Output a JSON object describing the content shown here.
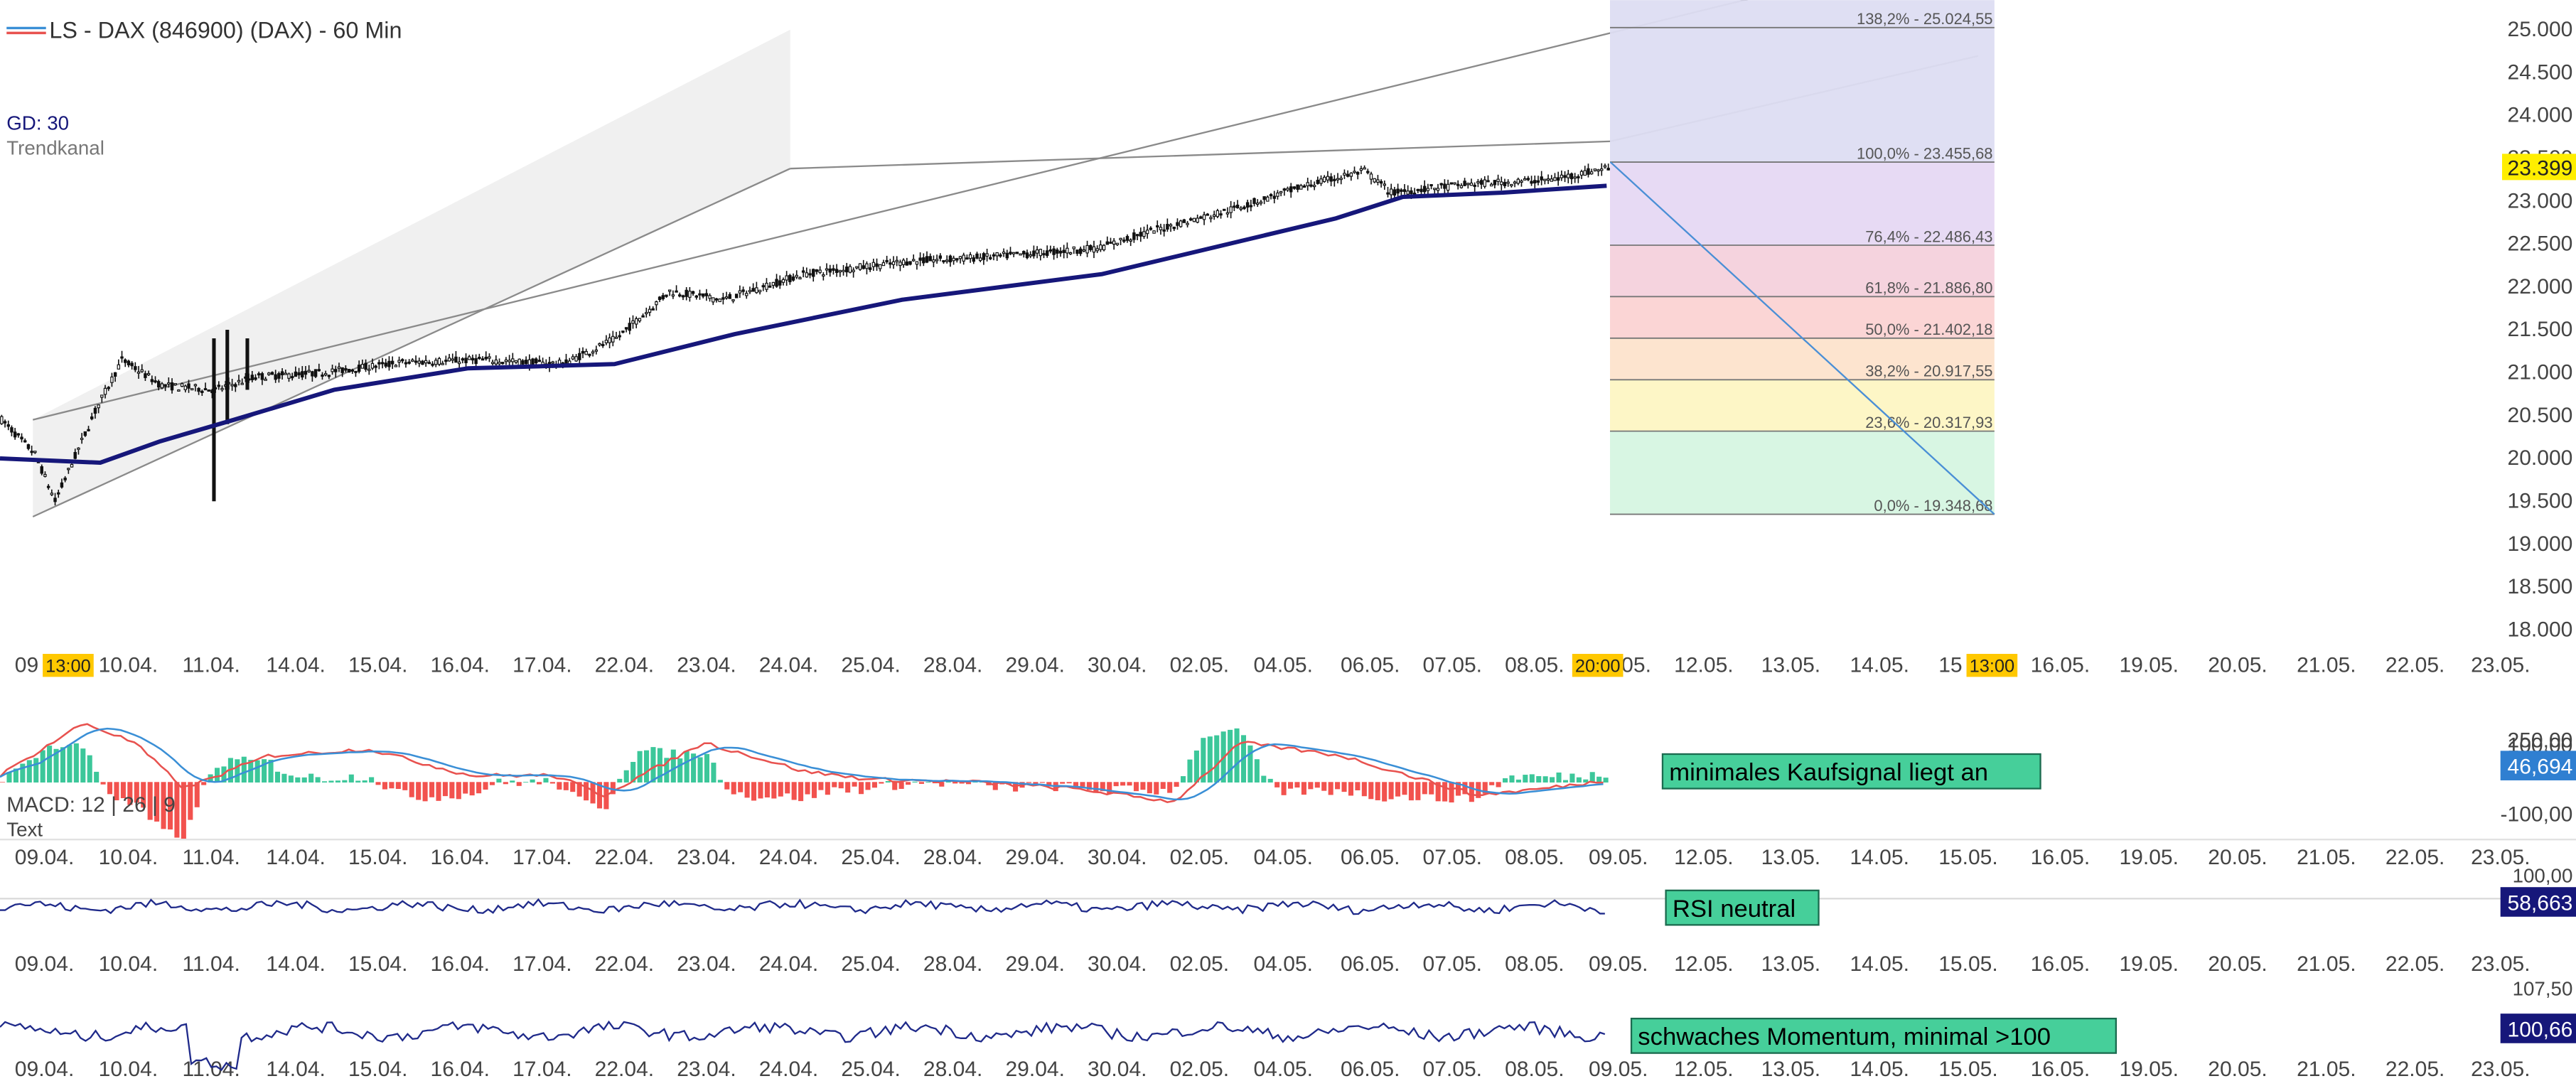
{
  "header": {
    "title": "LS - DAX (846900) (DAX) - 60 Min",
    "legend": [
      "GD: 30",
      "Trendkanal"
    ]
  },
  "colors": {
    "candle": "#111111",
    "sma": "#16177a",
    "channel_fill": "#f0f0f0",
    "channel_line": "#8a8a8a",
    "macd_line": "#e8524f",
    "signal_line": "#3a8fd6",
    "hist_pos": "#3cc79a",
    "hist_neg": "#f2524e",
    "indicator_line": "#1f2a8a",
    "annotation_fill": "#46cf9a",
    "price_badge": "#ffee00",
    "fib_bands": [
      "#c8e6fa",
      "#d6f5e2",
      "#fdf6c3",
      "#fde3cc",
      "#fbd3d3",
      "#f4d1dc",
      "#e6d8f3",
      "#ddddf2"
    ]
  },
  "chart_data": [
    {
      "type": "candlestick",
      "title": "LS - DAX (846900) (DAX) - 60 Min",
      "x_labels": [
        "09.04.",
        "10.04.",
        "11.04.",
        "14.04.",
        "15.04.",
        "16.04.",
        "17.04.",
        "22.04.",
        "23.04.",
        "24.04.",
        "25.04.",
        "28.04.",
        "29.04.",
        "30.04.",
        "02.05.",
        "04.05.",
        "06.05.",
        "07.05.",
        "08.05.",
        "09.05.",
        "12.05.",
        "13.05.",
        "14.05.",
        "15.05.",
        "16.05.",
        "19.05.",
        "20.05.",
        "21.05.",
        "22.05.",
        "23.05."
      ],
      "x_time_badges": [
        {
          "after": "09.04.",
          "label": "13:00"
        },
        {
          "after": "08.05.",
          "label": "20:00"
        },
        {
          "after": "15.05.",
          "label": "13:00"
        }
      ],
      "y_ticks": [
        "25.000",
        "24.500",
        "24.000",
        "23.500",
        "23.000",
        "22.500",
        "22.000",
        "21.500",
        "21.000",
        "20.500",
        "20.000",
        "19.500",
        "19.000",
        "18.500",
        "18.000"
      ],
      "last_price": "23.399",
      "close_path": [
        [
          0,
          20450
        ],
        [
          10,
          20050
        ],
        [
          16,
          19500
        ],
        [
          28,
          20550
        ],
        [
          36,
          21150
        ],
        [
          48,
          20850
        ],
        [
          64,
          20800
        ],
        [
          76,
          20950
        ],
        [
          96,
          21000
        ],
        [
          120,
          21120
        ],
        [
          144,
          21150
        ],
        [
          168,
          21100
        ],
        [
          184,
          21400
        ],
        [
          200,
          21950
        ],
        [
          216,
          21850
        ],
        [
          240,
          22150
        ],
        [
          272,
          22300
        ],
        [
          296,
          22350
        ],
        [
          328,
          22450
        ],
        [
          344,
          22650
        ],
        [
          368,
          22900
        ],
        [
          392,
          23200
        ],
        [
          408,
          23350
        ],
        [
          416,
          23100
        ],
        [
          440,
          23200
        ],
        [
          464,
          23250
        ],
        [
          481,
          23390
        ]
      ],
      "sma": {
        "name": "GD: 30",
        "path": [
          [
            0,
            20000
          ],
          [
            30,
            19950
          ],
          [
            48,
            20200
          ],
          [
            70,
            20450
          ],
          [
            100,
            20800
          ],
          [
            140,
            21050
          ],
          [
            184,
            21100
          ],
          [
            220,
            21450
          ],
          [
            270,
            21850
          ],
          [
            330,
            22150
          ],
          [
            400,
            22800
          ],
          [
            420,
            23050
          ],
          [
            450,
            23100
          ],
          [
            481,
            23180
          ]
        ]
      },
      "trend_channel": {
        "name": "Trendkanal",
        "lower": [
          [
            20,
            19320
          ],
          [
            481,
            23380
          ]
        ],
        "upper": [
          [
            20,
            20450
          ],
          [
            481,
            25000
          ]
        ],
        "mid": [
          [
            481,
            24200
          ],
          [
            590,
            24800
          ]
        ]
      },
      "fibonacci": [
        {
          "label": "138,2% - 25.024,55",
          "value": 25024.55
        },
        {
          "label": "100,0% - 23.455,68",
          "value": 23455.68
        },
        {
          "label": "76,4% - 22.486,43",
          "value": 22486.43
        },
        {
          "label": "61,8% - 21.886,80",
          "value": 21886.8
        },
        {
          "label": "50,0% - 21.402,18",
          "value": 21402.18
        },
        {
          "label": "38,2% - 20.917,55",
          "value": 20917.55
        },
        {
          "label": "23,6% - 20.317,93",
          "value": 20317.93
        },
        {
          "label": "0,0% - 19.348,68",
          "value": 19348.68
        }
      ],
      "fib_diagonal": [
        [
          481,
          23455.68
        ],
        [
          596,
          19348.68
        ]
      ]
    },
    {
      "type": "line",
      "name": "MACD",
      "label": "MACD: 12 | 26 | 9",
      "sublabel": "Text",
      "y_ticks": [
        "250,00",
        "100,00",
        "-100,00"
      ],
      "value_badge": "46,694",
      "annotation": "minimales Kaufsignal liegt an"
    },
    {
      "type": "line",
      "name": "RSI",
      "y_ticks": [
        "100,00"
      ],
      "value_badge": "58,663",
      "annotation": "RSI neutral"
    },
    {
      "type": "line",
      "name": "Momentum",
      "y_ticks": [
        "107,50"
      ],
      "value_badge": "100,66",
      "annotation": "schwaches Momentum, minimal >100"
    }
  ]
}
